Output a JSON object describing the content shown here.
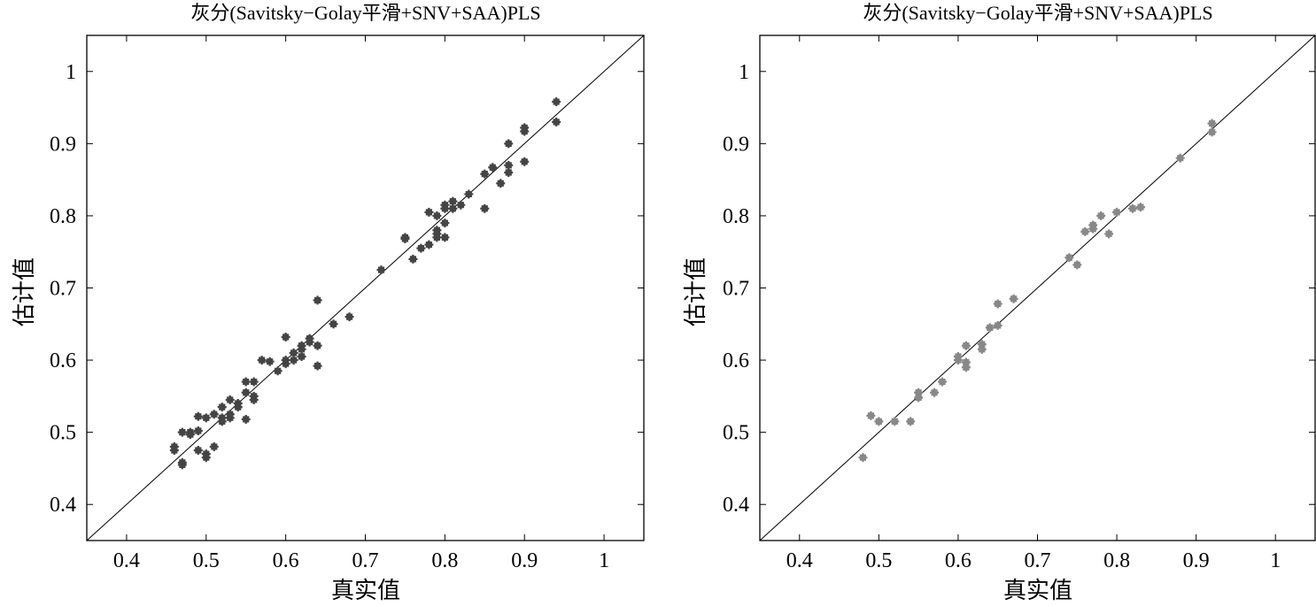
{
  "chart_data": [
    {
      "type": "scatter",
      "title": "灰分(Savitsky−Golay平滑+SNV+SAA)PLS",
      "xlabel": "真实值",
      "ylabel": "估计值",
      "xlim": [
        0.35,
        1.05
      ],
      "ylim": [
        0.35,
        1.05
      ],
      "xticks": [
        "0.4",
        "0.5",
        "0.6",
        "0.7",
        "0.8",
        "0.9",
        "1"
      ],
      "yticks": [
        "0.4",
        "0.5",
        "0.6",
        "0.7",
        "0.8",
        "0.9",
        "1"
      ],
      "grid": false,
      "reference_line": "y=x",
      "marker_color": "#444444",
      "points": [
        [
          0.46,
          0.475
        ],
        [
          0.46,
          0.48
        ],
        [
          0.47,
          0.5
        ],
        [
          0.47,
          0.455
        ],
        [
          0.47,
          0.458
        ],
        [
          0.48,
          0.5
        ],
        [
          0.48,
          0.497
        ],
        [
          0.49,
          0.502
        ],
        [
          0.49,
          0.522
        ],
        [
          0.49,
          0.475
        ],
        [
          0.5,
          0.465
        ],
        [
          0.5,
          0.47
        ],
        [
          0.5,
          0.52
        ],
        [
          0.51,
          0.48
        ],
        [
          0.51,
          0.525
        ],
        [
          0.52,
          0.515
        ],
        [
          0.52,
          0.52
        ],
        [
          0.52,
          0.535
        ],
        [
          0.53,
          0.52
        ],
        [
          0.53,
          0.525
        ],
        [
          0.53,
          0.545
        ],
        [
          0.54,
          0.535
        ],
        [
          0.54,
          0.54
        ],
        [
          0.55,
          0.518
        ],
        [
          0.55,
          0.555
        ],
        [
          0.55,
          0.57
        ],
        [
          0.56,
          0.57
        ],
        [
          0.56,
          0.545
        ],
        [
          0.56,
          0.55
        ],
        [
          0.57,
          0.6
        ],
        [
          0.58,
          0.598
        ],
        [
          0.59,
          0.585
        ],
        [
          0.6,
          0.595
        ],
        [
          0.6,
          0.6
        ],
        [
          0.6,
          0.632
        ],
        [
          0.61,
          0.61
        ],
        [
          0.61,
          0.6
        ],
        [
          0.62,
          0.62
        ],
        [
          0.62,
          0.615
        ],
        [
          0.62,
          0.605
        ],
        [
          0.63,
          0.625
        ],
        [
          0.63,
          0.63
        ],
        [
          0.64,
          0.683
        ],
        [
          0.64,
          0.62
        ],
        [
          0.64,
          0.592
        ],
        [
          0.66,
          0.65
        ],
        [
          0.68,
          0.66
        ],
        [
          0.72,
          0.725
        ],
        [
          0.75,
          0.77
        ],
        [
          0.75,
          0.768
        ],
        [
          0.76,
          0.74
        ],
        [
          0.77,
          0.755
        ],
        [
          0.78,
          0.805
        ],
        [
          0.78,
          0.76
        ],
        [
          0.79,
          0.77
        ],
        [
          0.79,
          0.775
        ],
        [
          0.79,
          0.78
        ],
        [
          0.79,
          0.8
        ],
        [
          0.8,
          0.79
        ],
        [
          0.8,
          0.81
        ],
        [
          0.8,
          0.815
        ],
        [
          0.8,
          0.77
        ],
        [
          0.81,
          0.82
        ],
        [
          0.81,
          0.81
        ],
        [
          0.82,
          0.815
        ],
        [
          0.83,
          0.83
        ],
        [
          0.85,
          0.81
        ],
        [
          0.85,
          0.858
        ],
        [
          0.86,
          0.867
        ],
        [
          0.87,
          0.845
        ],
        [
          0.88,
          0.86
        ],
        [
          0.88,
          0.87
        ],
        [
          0.88,
          0.9
        ],
        [
          0.9,
          0.917
        ],
        [
          0.9,
          0.922
        ],
        [
          0.9,
          0.875
        ],
        [
          0.94,
          0.958
        ],
        [
          0.94,
          0.93
        ]
      ]
    },
    {
      "type": "scatter",
      "title": "灰分(Savitsky−Golay平滑+SNV+SAA)PLS",
      "xlabel": "真实值",
      "ylabel": "估计值",
      "xlim": [
        0.35,
        1.05
      ],
      "ylim": [
        0.35,
        1.05
      ],
      "xticks": [
        "0.4",
        "0.5",
        "0.6",
        "0.7",
        "0.8",
        "0.9",
        "1"
      ],
      "yticks": [
        "0.4",
        "0.5",
        "0.6",
        "0.7",
        "0.8",
        "0.9",
        "1"
      ],
      "grid": false,
      "reference_line": "y=x",
      "marker_color": "#888888",
      "points": [
        [
          0.48,
          0.465
        ],
        [
          0.49,
          0.523
        ],
        [
          0.5,
          0.515
        ],
        [
          0.52,
          0.515
        ],
        [
          0.54,
          0.515
        ],
        [
          0.55,
          0.548
        ],
        [
          0.55,
          0.555
        ],
        [
          0.57,
          0.555
        ],
        [
          0.58,
          0.57
        ],
        [
          0.6,
          0.6
        ],
        [
          0.6,
          0.605
        ],
        [
          0.61,
          0.59
        ],
        [
          0.61,
          0.597
        ],
        [
          0.61,
          0.62
        ],
        [
          0.63,
          0.615
        ],
        [
          0.63,
          0.622
        ],
        [
          0.64,
          0.645
        ],
        [
          0.65,
          0.648
        ],
        [
          0.65,
          0.678
        ],
        [
          0.67,
          0.685
        ],
        [
          0.74,
          0.742
        ],
        [
          0.75,
          0.732
        ],
        [
          0.76,
          0.778
        ],
        [
          0.77,
          0.782
        ],
        [
          0.77,
          0.787
        ],
        [
          0.78,
          0.8
        ],
        [
          0.79,
          0.775
        ],
        [
          0.8,
          0.805
        ],
        [
          0.82,
          0.81
        ],
        [
          0.83,
          0.812
        ],
        [
          0.88,
          0.88
        ],
        [
          0.92,
          0.928
        ],
        [
          0.92,
          0.916
        ]
      ]
    }
  ]
}
